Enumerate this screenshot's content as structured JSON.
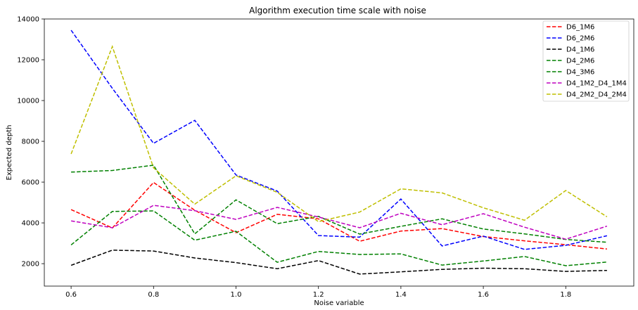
{
  "chart_data": {
    "type": "line",
    "title": "Algorithm execution time scale with noise",
    "xlabel": "Noise variable",
    "ylabel": "Expected depth",
    "x": [
      0.6,
      0.7,
      0.8,
      0.9,
      1.0,
      1.1,
      1.2,
      1.3,
      1.4,
      1.5,
      1.6,
      1.7,
      1.8,
      1.9
    ],
    "xlim": [
      0.535,
      1.965
    ],
    "ylim": [
      900,
      14000
    ],
    "xticks": [
      0.6,
      0.8,
      1.0,
      1.2,
      1.4,
      1.6,
      1.8
    ],
    "xtick_labels": [
      "0.6",
      "0.8",
      "1.0",
      "1.2",
      "1.4",
      "1.6",
      "1.8"
    ],
    "yticks": [
      2000,
      4000,
      6000,
      8000,
      10000,
      12000,
      14000
    ],
    "ytick_labels": [
      "2000",
      "4000",
      "6000",
      "8000",
      "10000",
      "12000",
      "14000"
    ],
    "grid": false,
    "legend_position": "top-right",
    "line_style": "dashed",
    "series": [
      {
        "name": "D6_1M6",
        "color": "#ff0000",
        "values": [
          4650,
          3750,
          5980,
          4620,
          3520,
          4420,
          4200,
          3100,
          3600,
          3720,
          3330,
          3120,
          2930,
          2720
        ]
      },
      {
        "name": "D6_2M6",
        "color": "#0000ff",
        "values": [
          13450,
          10600,
          7900,
          9030,
          6350,
          5560,
          3380,
          3300,
          5170,
          2870,
          3350,
          2700,
          2900,
          3370
        ]
      },
      {
        "name": "D4_1M6",
        "color": "#000000",
        "values": [
          1920,
          2660,
          2620,
          2280,
          2050,
          1750,
          2150,
          1490,
          1600,
          1720,
          1780,
          1750,
          1620,
          1670
        ]
      },
      {
        "name": "D4_2M6",
        "color": "#008000",
        "values": [
          6490,
          6570,
          6830,
          3460,
          5130,
          3960,
          4320,
          3450,
          3830,
          4200,
          3700,
          3460,
          3190,
          3050
        ]
      },
      {
        "name": "D4_3M6",
        "color": "#008000",
        "values": [
          2920,
          4560,
          4590,
          3150,
          3590,
          2070,
          2600,
          2450,
          2480,
          1930,
          2130,
          2350,
          1900,
          2080
        ]
      },
      {
        "name": "D4_1M2_D4_1M4",
        "color": "#bf00bf",
        "values": [
          4100,
          3760,
          4860,
          4600,
          4170,
          4760,
          4290,
          3760,
          4470,
          3910,
          4450,
          3790,
          3200,
          3840
        ]
      },
      {
        "name": "D4_2M2_D4_2M4",
        "color": "#bfbf00",
        "values": [
          7380,
          12650,
          6700,
          4920,
          6310,
          5500,
          4060,
          4530,
          5670,
          5470,
          4740,
          4130,
          5590,
          4300
        ]
      }
    ]
  }
}
